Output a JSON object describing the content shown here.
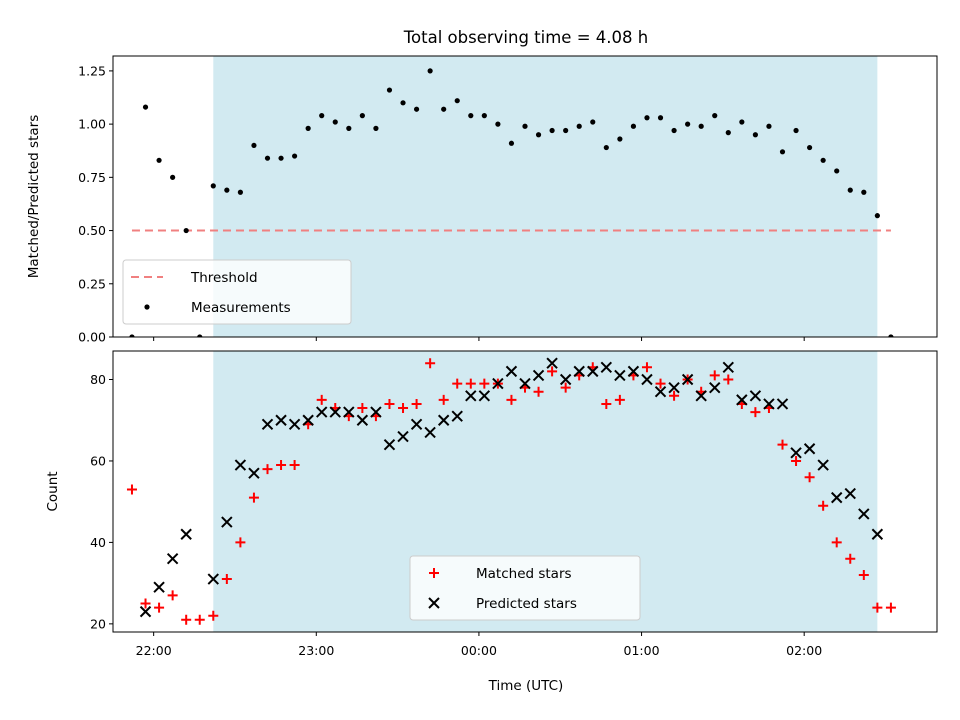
{
  "chart_data": {
    "title": "Total observing time = 4.08 h",
    "xlabel": "Time (UTC)",
    "x_ticks": [
      {
        "t": "22:00",
        "label": "22:00"
      },
      {
        "t": "23:00",
        "label": "23:00"
      },
      {
        "t": "00:00",
        "label": "00:00"
      },
      {
        "t": "01:00",
        "label": "01:00"
      },
      {
        "t": "02:00",
        "label": "02:00"
      }
    ],
    "xlim": [
      "21:45",
      "02:49"
    ],
    "shaded_interval": {
      "start": "22:22",
      "end": "02:27",
      "color": "#add8e6"
    },
    "panels": [
      {
        "type": "scatter",
        "ylabel": "Matched/Predicted stars",
        "ylim": [
          0,
          1.32
        ],
        "yticks": [
          "0.00",
          "0.25",
          "0.50",
          "0.75",
          "1.00",
          "1.25"
        ],
        "threshold": {
          "name": "Threshold",
          "value": 0.5,
          "x_start": "21:52",
          "x_end": "02:32",
          "color": "#f08080"
        },
        "legend": {
          "position": "lower-left",
          "entries": [
            "Threshold",
            "Measurements"
          ]
        },
        "series": [
          {
            "name": "Measurements",
            "color": "#000000",
            "marker": "dot",
            "points": [
              [
                "21:52",
                0.0
              ],
              [
                "21:57",
                1.08
              ],
              [
                "22:02",
                0.83
              ],
              [
                "22:07",
                0.75
              ],
              [
                "22:12",
                0.5
              ],
              [
                "22:17",
                0.0
              ],
              [
                "22:22",
                0.71
              ],
              [
                "22:27",
                0.69
              ],
              [
                "22:32",
                0.68
              ],
              [
                "22:37",
                0.9
              ],
              [
                "22:42",
                0.84
              ],
              [
                "22:47",
                0.84
              ],
              [
                "22:52",
                0.85
              ],
              [
                "22:57",
                0.98
              ],
              [
                "23:02",
                1.04
              ],
              [
                "23:07",
                1.01
              ],
              [
                "23:12",
                0.98
              ],
              [
                "23:17",
                1.04
              ],
              [
                "23:22",
                0.98
              ],
              [
                "23:27",
                1.16
              ],
              [
                "23:32",
                1.1
              ],
              [
                "23:37",
                1.07
              ],
              [
                "23:42",
                1.25
              ],
              [
                "23:47",
                1.07
              ],
              [
                "23:52",
                1.11
              ],
              [
                "23:57",
                1.04
              ],
              [
                "00:02",
                1.04
              ],
              [
                "00:07",
                1.0
              ],
              [
                "00:12",
                0.91
              ],
              [
                "00:17",
                0.99
              ],
              [
                "00:22",
                0.95
              ],
              [
                "00:27",
                0.97
              ],
              [
                "00:32",
                0.97
              ],
              [
                "00:37",
                0.99
              ],
              [
                "00:42",
                1.01
              ],
              [
                "00:47",
                0.89
              ],
              [
                "00:52",
                0.93
              ],
              [
                "00:57",
                0.99
              ],
              [
                "01:02",
                1.03
              ],
              [
                "01:07",
                1.03
              ],
              [
                "01:12",
                0.97
              ],
              [
                "01:17",
                1.0
              ],
              [
                "01:22",
                0.99
              ],
              [
                "01:27",
                1.04
              ],
              [
                "01:32",
                0.96
              ],
              [
                "01:37",
                1.01
              ],
              [
                "01:42",
                0.95
              ],
              [
                "01:47",
                0.99
              ],
              [
                "01:52",
                0.87
              ],
              [
                "01:57",
                0.97
              ],
              [
                "02:02",
                0.89
              ],
              [
                "02:07",
                0.83
              ],
              [
                "02:12",
                0.78
              ],
              [
                "02:17",
                0.69
              ],
              [
                "02:22",
                0.68
              ],
              [
                "02:27",
                0.57
              ],
              [
                "02:32",
                0.0
              ]
            ]
          }
        ]
      },
      {
        "type": "scatter",
        "ylabel": "Count",
        "ylim": [
          18,
          87
        ],
        "yticks": [
          "20",
          "40",
          "60",
          "80"
        ],
        "legend": {
          "position": "lower-center",
          "entries": [
            "Matched stars",
            "Predicted stars"
          ]
        },
        "series": [
          {
            "name": "Matched stars",
            "color": "#ff0000",
            "marker": "plus",
            "points": [
              [
                "21:52",
                53
              ],
              [
                "21:57",
                25
              ],
              [
                "22:02",
                24
              ],
              [
                "22:07",
                27
              ],
              [
                "22:12",
                21
              ],
              [
                "22:17",
                21
              ],
              [
                "22:22",
                22
              ],
              [
                "22:27",
                31
              ],
              [
                "22:32",
                40
              ],
              [
                "22:37",
                51
              ],
              [
                "22:42",
                58
              ],
              [
                "22:47",
                59
              ],
              [
                "22:52",
                59
              ],
              [
                "22:57",
                69
              ],
              [
                "23:02",
                75
              ],
              [
                "23:07",
                73
              ],
              [
                "23:12",
                71
              ],
              [
                "23:17",
                73
              ],
              [
                "23:22",
                71
              ],
              [
                "23:27",
                74
              ],
              [
                "23:32",
                73
              ],
              [
                "23:37",
                74
              ],
              [
                "23:42",
                84
              ],
              [
                "23:47",
                75
              ],
              [
                "23:52",
                79
              ],
              [
                "23:57",
                79
              ],
              [
                "00:02",
                79
              ],
              [
                "00:07",
                79
              ],
              [
                "00:12",
                75
              ],
              [
                "00:17",
                78
              ],
              [
                "00:22",
                77
              ],
              [
                "00:27",
                82
              ],
              [
                "00:32",
                78
              ],
              [
                "00:37",
                81
              ],
              [
                "00:42",
                83
              ],
              [
                "00:47",
                74
              ],
              [
                "00:52",
                75
              ],
              [
                "00:57",
                81
              ],
              [
                "01:02",
                83
              ],
              [
                "01:07",
                79
              ],
              [
                "01:12",
                76
              ],
              [
                "01:17",
                80
              ],
              [
                "01:22",
                77
              ],
              [
                "01:27",
                81
              ],
              [
                "01:32",
                80
              ],
              [
                "01:37",
                74
              ],
              [
                "01:42",
                72
              ],
              [
                "01:47",
                73
              ],
              [
                "01:52",
                64
              ],
              [
                "01:57",
                60
              ],
              [
                "02:02",
                56
              ],
              [
                "02:07",
                49
              ],
              [
                "02:12",
                40
              ],
              [
                "02:17",
                36
              ],
              [
                "02:22",
                32
              ],
              [
                "02:27",
                24
              ],
              [
                "02:32",
                24
              ]
            ]
          },
          {
            "name": "Predicted stars",
            "color": "#000000",
            "marker": "x",
            "points": [
              [
                "21:57",
                23
              ],
              [
                "22:02",
                29
              ],
              [
                "22:07",
                36
              ],
              [
                "22:12",
                42
              ],
              [
                "22:22",
                31
              ],
              [
                "22:27",
                45
              ],
              [
                "22:32",
                59
              ],
              [
                "22:37",
                57
              ],
              [
                "22:42",
                69
              ],
              [
                "22:47",
                70
              ],
              [
                "22:52",
                69
              ],
              [
                "22:57",
                70
              ],
              [
                "23:02",
                72
              ],
              [
                "23:07",
                72
              ],
              [
                "23:12",
                72
              ],
              [
                "23:17",
                70
              ],
              [
                "23:22",
                72
              ],
              [
                "23:27",
                64
              ],
              [
                "23:32",
                66
              ],
              [
                "23:37",
                69
              ],
              [
                "23:42",
                67
              ],
              [
                "23:47",
                70
              ],
              [
                "23:52",
                71
              ],
              [
                "23:57",
                76
              ],
              [
                "00:02",
                76
              ],
              [
                "00:07",
                79
              ],
              [
                "00:12",
                82
              ],
              [
                "00:17",
                79
              ],
              [
                "00:22",
                81
              ],
              [
                "00:27",
                84
              ],
              [
                "00:32",
                80
              ],
              [
                "00:37",
                82
              ],
              [
                "00:42",
                82
              ],
              [
                "00:47",
                83
              ],
              [
                "00:52",
                81
              ],
              [
                "00:57",
                82
              ],
              [
                "01:02",
                80
              ],
              [
                "01:07",
                77
              ],
              [
                "01:12",
                78
              ],
              [
                "01:17",
                80
              ],
              [
                "01:22",
                76
              ],
              [
                "01:27",
                78
              ],
              [
                "01:32",
                83
              ],
              [
                "01:37",
                75
              ],
              [
                "01:42",
                76
              ],
              [
                "01:47",
                74
              ],
              [
                "01:52",
                74
              ],
              [
                "01:57",
                62
              ],
              [
                "02:02",
                63
              ],
              [
                "02:07",
                59
              ],
              [
                "02:12",
                51
              ],
              [
                "02:17",
                52
              ],
              [
                "02:22",
                47
              ],
              [
                "02:27",
                42
              ]
            ]
          }
        ]
      }
    ]
  }
}
